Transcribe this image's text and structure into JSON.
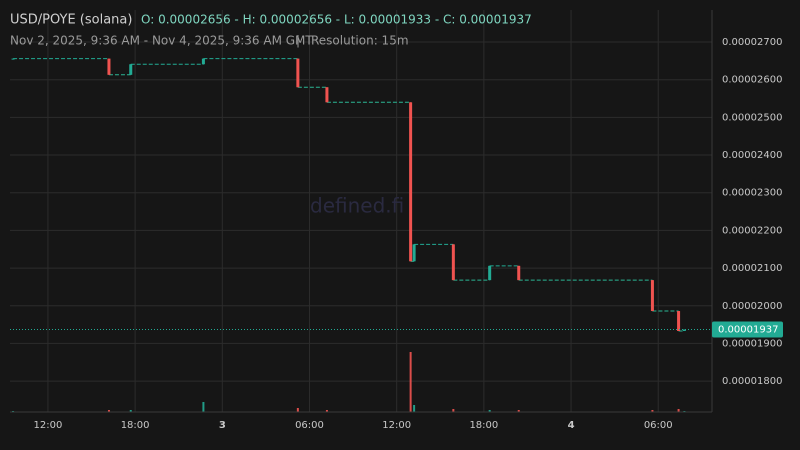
{
  "chart_data": {
    "type": "candlestick",
    "title": "USD/POYE (solana)",
    "ohlc_text": "O: 0.00002656 - H: 0.00002656 - L: 0.00001933 - C: 0.00001937",
    "date_range": "Nov 2, 2025, 9:36 AM - Nov 4, 2025, 9:36 AM GMT",
    "separator": "|",
    "resolution": "Resolution: 15m",
    "watermark": "defined.fi",
    "up_color": "#22ab94",
    "down_color": "#f05350",
    "grid": true,
    "x": [
      9.6,
      16.2,
      17.7,
      22.7,
      29.2,
      31.2,
      36.96,
      37.2,
      39.9,
      42.4,
      44.4,
      53.6,
      55.4,
      55.8
    ],
    "open": [
      2.656e-05,
      2.656e-05,
      2.613e-05,
      2.641e-05,
      2.656e-05,
      2.58e-05,
      2.54e-05,
      2.118e-05,
      2.163e-05,
      2.068e-05,
      2.106e-05,
      2.068e-05,
      1.986e-05,
      1.933e-05
    ],
    "high": [
      2.656e-05,
      2.656e-05,
      2.641e-05,
      2.656e-05,
      2.656e-05,
      2.58e-05,
      2.54e-05,
      2.163e-05,
      2.163e-05,
      2.106e-05,
      2.106e-05,
      2.068e-05,
      1.986e-05,
      1.937e-05
    ],
    "low": [
      2.656e-05,
      2.613e-05,
      2.613e-05,
      2.641e-05,
      2.58e-05,
      2.54e-05,
      2.118e-05,
      2.118e-05,
      2.068e-05,
      2.068e-05,
      2.068e-05,
      1.986e-05,
      1.933e-05,
      1.933e-05
    ],
    "close": [
      2.656e-05,
      2.613e-05,
      2.641e-05,
      2.656e-05,
      2.58e-05,
      2.54e-05,
      2.118e-05,
      2.163e-05,
      2.068e-05,
      2.106e-05,
      2.068e-05,
      1.986e-05,
      1.933e-05,
      1.937e-05
    ],
    "volume": [
      1,
      2,
      2,
      10,
      4,
      2,
      60,
      7,
      3,
      2,
      2,
      2,
      3,
      1
    ],
    "last_price": 1.937e-05,
    "xlim": [
      9.39,
      57.7
    ],
    "xticks": [
      {
        "value": 12,
        "label": "12:00"
      },
      {
        "value": 18,
        "label": "18:00"
      },
      {
        "value": 24,
        "label": "3"
      },
      {
        "value": 30,
        "label": "06:00"
      },
      {
        "value": 36,
        "label": "12:00"
      },
      {
        "value": 42,
        "label": "18:00"
      },
      {
        "value": 48,
        "label": "4"
      },
      {
        "value": 54,
        "label": "06:00"
      }
    ],
    "ylim": [
      1.718e-05,
      2.785e-05
    ],
    "yticks": [
      {
        "value": 1.8e-05,
        "label": "0.00001800"
      },
      {
        "value": 1.9e-05,
        "label": "0.00001900"
      },
      {
        "value": 2e-05,
        "label": "0.00002000"
      },
      {
        "value": 2.1e-05,
        "label": "0.00002100"
      },
      {
        "value": 2.2e-05,
        "label": "0.00002200"
      },
      {
        "value": 2.3e-05,
        "label": "0.00002300"
      },
      {
        "value": 2.4e-05,
        "label": "0.00002400"
      },
      {
        "value": 2.5e-05,
        "label": "0.00002500"
      },
      {
        "value": 2.6e-05,
        "label": "0.00002600"
      },
      {
        "value": 2.7e-05,
        "label": "0.00002700"
      }
    ]
  }
}
